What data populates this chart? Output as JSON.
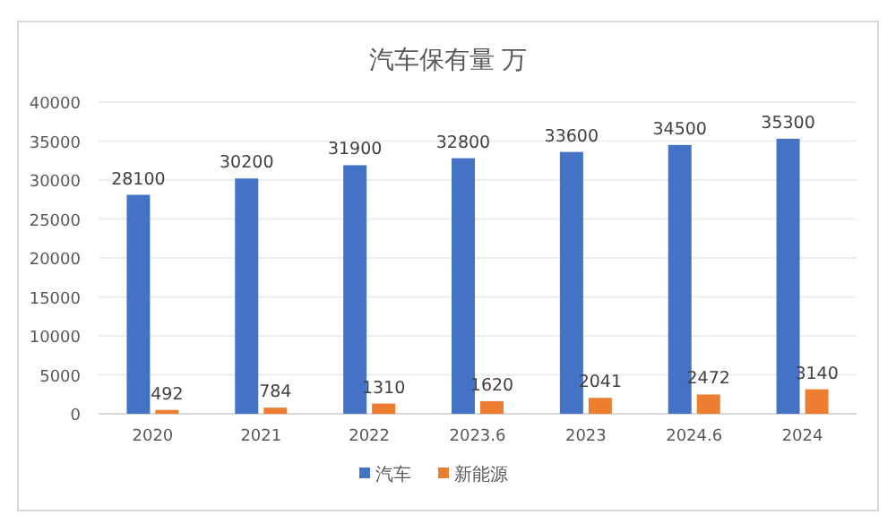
{
  "chart_data": {
    "type": "bar",
    "title": "汽车保有量 万",
    "categories": [
      "2020",
      "2021",
      "2022",
      "2023.6",
      "2023",
      "2024.6",
      "2024"
    ],
    "series": [
      {
        "name": "汽车",
        "color": "#4472c4",
        "values": [
          28100,
          30200,
          31900,
          32800,
          33600,
          34500,
          35300
        ]
      },
      {
        "name": "新能源",
        "color": "#ed7d31",
        "values": [
          492,
          784,
          1310,
          1620,
          2041,
          2472,
          3140
        ]
      }
    ],
    "ylim": [
      0,
      40000
    ],
    "yticks": [
      0,
      5000,
      10000,
      15000,
      20000,
      25000,
      30000,
      35000,
      40000
    ],
    "grid": "y",
    "legend": "bottom",
    "data_labels": true
  }
}
